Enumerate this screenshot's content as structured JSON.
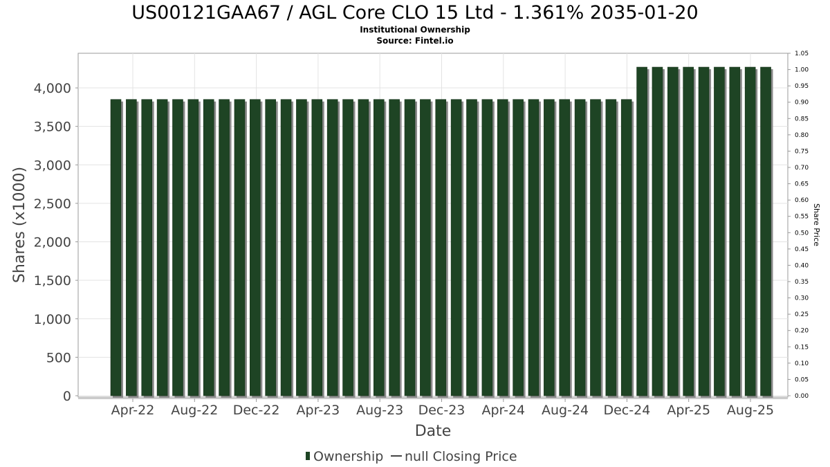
{
  "chart_data": {
    "type": "bar",
    "title": "US00121GAA67 / AGL Core CLO 15 Ltd - 1.361% 2035-01-20",
    "subtitle": "Institutional Ownership",
    "source": "Source: Fintel.io",
    "xlabel": "Date",
    "ylabel": "Shares (x1000)",
    "ylabel_right": "Share Price",
    "ylim": [
      0,
      4450
    ],
    "ylim_right": [
      0,
      1.05
    ],
    "yticks": [
      "0",
      "500",
      "1,000",
      "1,500",
      "2,000",
      "2,500",
      "3,000",
      "3,500",
      "4,000"
    ],
    "yticks_right": [
      "0.00",
      "0.05",
      "0.10",
      "0.15",
      "0.20",
      "0.25",
      "0.30",
      "0.35",
      "0.40",
      "0.45",
      "0.50",
      "0.55",
      "0.60",
      "0.65",
      "0.70",
      "0.75",
      "0.80",
      "0.85",
      "0.90",
      "0.95",
      "1.00",
      "1.05"
    ],
    "xticks": [
      "Apr-22",
      "Aug-22",
      "Dec-22",
      "Apr-23",
      "Aug-23",
      "Dec-23",
      "Apr-24",
      "Aug-24",
      "Dec-24",
      "Apr-25",
      "Aug-25"
    ],
    "grid": true,
    "legend_position": "bottom",
    "series": [
      {
        "name": "Ownership",
        "color": "#1e4424",
        "values": [
          3850,
          3850,
          3850,
          3850,
          3850,
          3850,
          3850,
          3850,
          3850,
          3850,
          3850,
          3850,
          3850,
          3850,
          3850,
          3850,
          3850,
          3850,
          3850,
          3850,
          3850,
          3850,
          3850,
          3850,
          3850,
          3850,
          3850,
          3850,
          3850,
          3850,
          3850,
          3850,
          3850,
          3850,
          4270,
          4270,
          4270,
          4270,
          4270,
          4270,
          4270,
          4270,
          4270
        ]
      },
      {
        "name": "null Closing Price",
        "color": "#444444",
        "values": []
      }
    ]
  }
}
